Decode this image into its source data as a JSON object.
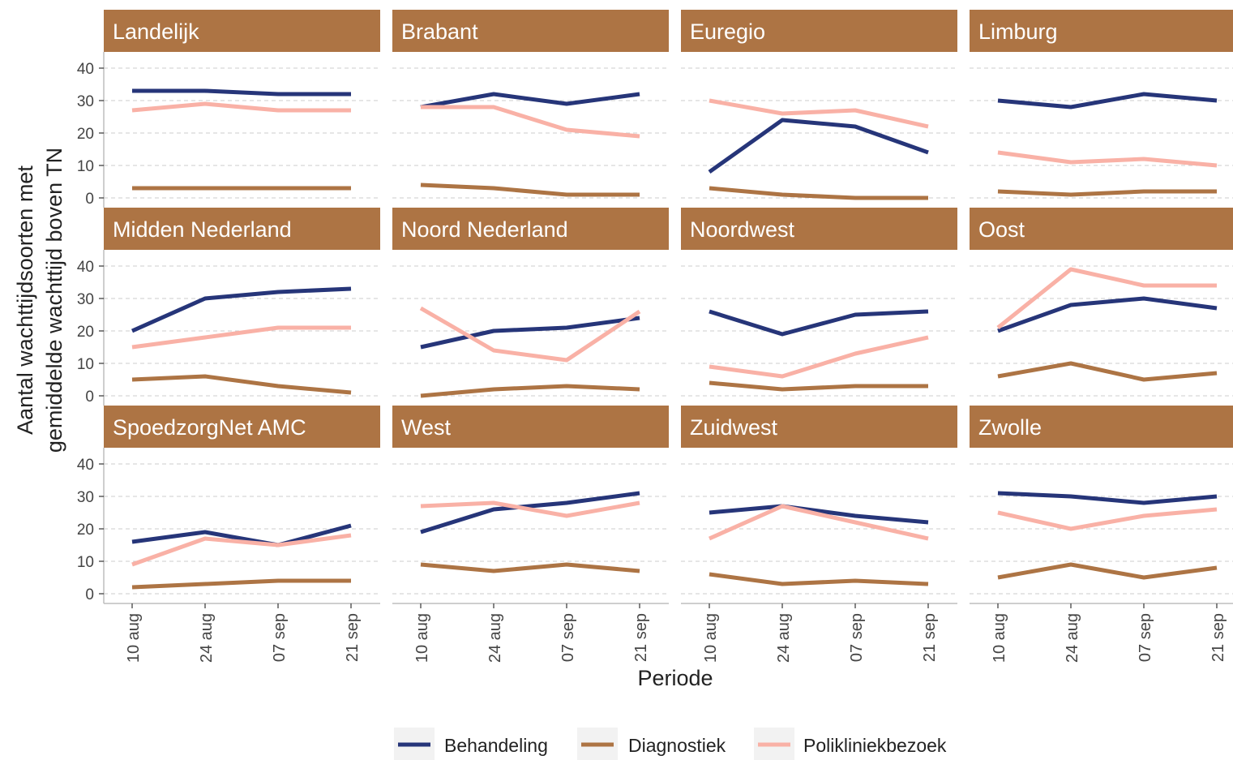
{
  "chart_data": {
    "type": "line",
    "xlabel": "Periode",
    "ylabel_lines": [
      "Aantal wachttijdsoorten met",
      "gemiddelde wachttijd boven TN"
    ],
    "x": [
      "10 aug",
      "24 aug",
      "07 sep",
      "21 sep"
    ],
    "yticks": [
      0,
      10,
      20,
      30,
      40
    ],
    "ylim": [
      -3,
      45
    ],
    "grid": "horizontal-dashed",
    "legend_position": "bottom",
    "strip_color": "#ad7444",
    "series_meta": [
      {
        "name": "Behandeling",
        "color": "#263579"
      },
      {
        "name": "Diagnostiek",
        "color": "#ad7444"
      },
      {
        "name": "Polikliniekbezoek",
        "color": "#f9b1a6"
      }
    ],
    "panels": [
      {
        "title": "Landelijk",
        "series": [
          {
            "name": "Behandeling",
            "values": [
              33,
              33,
              32,
              32
            ]
          },
          {
            "name": "Diagnostiek",
            "values": [
              3,
              3,
              3,
              3
            ]
          },
          {
            "name": "Polikliniekbezoek",
            "values": [
              27,
              29,
              27,
              27
            ]
          }
        ]
      },
      {
        "title": "Brabant",
        "series": [
          {
            "name": "Behandeling",
            "values": [
              28,
              32,
              29,
              32
            ]
          },
          {
            "name": "Diagnostiek",
            "values": [
              4,
              3,
              1,
              1
            ]
          },
          {
            "name": "Polikliniekbezoek",
            "values": [
              28,
              28,
              21,
              19
            ]
          }
        ]
      },
      {
        "title": "Euregio",
        "series": [
          {
            "name": "Behandeling",
            "values": [
              8,
              24,
              22,
              14
            ]
          },
          {
            "name": "Diagnostiek",
            "values": [
              3,
              1,
              0,
              0
            ]
          },
          {
            "name": "Polikliniekbezoek",
            "values": [
              30,
              26,
              27,
              22
            ]
          }
        ]
      },
      {
        "title": "Limburg",
        "series": [
          {
            "name": "Behandeling",
            "values": [
              30,
              28,
              32,
              30
            ]
          },
          {
            "name": "Diagnostiek",
            "values": [
              2,
              1,
              2,
              2
            ]
          },
          {
            "name": "Polikliniekbezoek",
            "values": [
              14,
              11,
              12,
              10
            ]
          }
        ]
      },
      {
        "title": "Midden Nederland",
        "series": [
          {
            "name": "Behandeling",
            "values": [
              20,
              30,
              32,
              33
            ]
          },
          {
            "name": "Diagnostiek",
            "values": [
              5,
              6,
              3,
              1
            ]
          },
          {
            "name": "Polikliniekbezoek",
            "values": [
              15,
              18,
              21,
              21
            ]
          }
        ]
      },
      {
        "title": "Noord Nederland",
        "series": [
          {
            "name": "Behandeling",
            "values": [
              15,
              20,
              21,
              24
            ]
          },
          {
            "name": "Diagnostiek",
            "values": [
              0,
              2,
              3,
              2
            ]
          },
          {
            "name": "Polikliniekbezoek",
            "values": [
              27,
              14,
              11,
              26
            ]
          }
        ]
      },
      {
        "title": "Noordwest",
        "series": [
          {
            "name": "Behandeling",
            "values": [
              26,
              19,
              25,
              26
            ]
          },
          {
            "name": "Diagnostiek",
            "values": [
              4,
              2,
              3,
              3
            ]
          },
          {
            "name": "Polikliniekbezoek",
            "values": [
              9,
              6,
              13,
              18
            ]
          }
        ]
      },
      {
        "title": "Oost",
        "series": [
          {
            "name": "Behandeling",
            "values": [
              20,
              28,
              30,
              27
            ]
          },
          {
            "name": "Diagnostiek",
            "values": [
              6,
              10,
              5,
              7
            ]
          },
          {
            "name": "Polikliniekbezoek",
            "values": [
              21,
              39,
              34,
              34
            ]
          }
        ]
      },
      {
        "title": "SpoedzorgNet AMC",
        "series": [
          {
            "name": "Behandeling",
            "values": [
              16,
              19,
              15,
              21
            ]
          },
          {
            "name": "Diagnostiek",
            "values": [
              2,
              3,
              4,
              4
            ]
          },
          {
            "name": "Polikliniekbezoek",
            "values": [
              9,
              17,
              15,
              18
            ]
          }
        ]
      },
      {
        "title": "West",
        "series": [
          {
            "name": "Behandeling",
            "values": [
              19,
              26,
              28,
              31
            ]
          },
          {
            "name": "Diagnostiek",
            "values": [
              9,
              7,
              9,
              7
            ]
          },
          {
            "name": "Polikliniekbezoek",
            "values": [
              27,
              28,
              24,
              28
            ]
          }
        ]
      },
      {
        "title": "Zuidwest",
        "series": [
          {
            "name": "Behandeling",
            "values": [
              25,
              27,
              24,
              22
            ]
          },
          {
            "name": "Diagnostiek",
            "values": [
              6,
              3,
              4,
              3
            ]
          },
          {
            "name": "Polikliniekbezoek",
            "values": [
              17,
              27,
              22,
              17
            ]
          }
        ]
      },
      {
        "title": "Zwolle",
        "series": [
          {
            "name": "Behandeling",
            "values": [
              31,
              30,
              28,
              30
            ]
          },
          {
            "name": "Diagnostiek",
            "values": [
              5,
              9,
              5,
              8
            ]
          },
          {
            "name": "Polikliniekbezoek",
            "values": [
              25,
              20,
              24,
              26
            ]
          }
        ]
      }
    ]
  }
}
